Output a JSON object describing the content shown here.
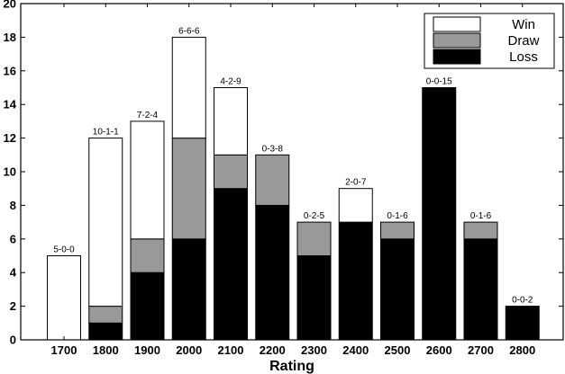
{
  "chart_data": {
    "type": "bar",
    "stacked": true,
    "title": "",
    "xlabel": "Rating",
    "ylabel": "",
    "ylim": [
      0,
      20
    ],
    "yticks": [
      0,
      2,
      4,
      6,
      8,
      10,
      12,
      14,
      16,
      18,
      20
    ],
    "grid": false,
    "legend_position": "top-right",
    "categories": [
      "1700",
      "1800",
      "1900",
      "2000",
      "2100",
      "2200",
      "2300",
      "2400",
      "2500",
      "2600",
      "2700",
      "2800"
    ],
    "series": [
      {
        "name": "Loss",
        "color": "#000000",
        "values": [
          0,
          1,
          4,
          6,
          9,
          8,
          5,
          7,
          6,
          15,
          6,
          2
        ]
      },
      {
        "name": "Draw",
        "color": "#999999",
        "values": [
          0,
          1,
          2,
          6,
          2,
          3,
          2,
          0,
          1,
          0,
          1,
          0
        ]
      },
      {
        "name": "Win",
        "color": "#ffffff",
        "values": [
          5,
          10,
          7,
          6,
          4,
          0,
          0,
          2,
          0,
          0,
          0,
          0
        ]
      }
    ],
    "legend_order": [
      "Win",
      "Draw",
      "Loss"
    ],
    "bar_labels": [
      "5-0-0",
      "10-1-1",
      "7-2-4",
      "6-6-6",
      "4-2-9",
      "0-3-8",
      "0-2-5",
      "2-0-7",
      "0-1-6",
      "0-0-15",
      "0-1-6",
      "0-0-2"
    ]
  }
}
